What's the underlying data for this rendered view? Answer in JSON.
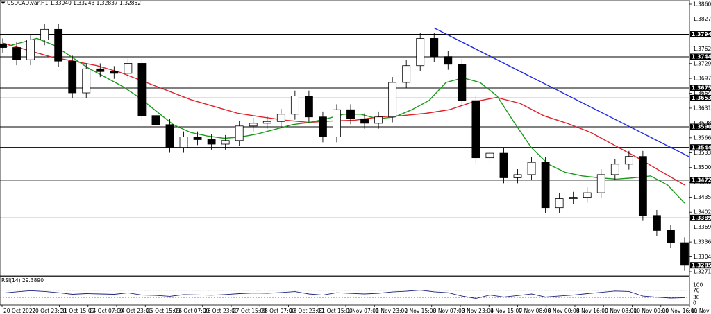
{
  "header": {
    "symbol_line": "USDCAD.var,H1  1.33040 1.33243 1.32837 1.32852",
    "dropdown_icon": "triangle-down-icon"
  },
  "colors": {
    "candle": "#000000",
    "sma_fast": "#1a9a1a",
    "sma_slow": "#e0202a",
    "trendline": "#1d2ae0",
    "hline": "#000000",
    "rsi": "#1a237e",
    "price_label_bg": "#000000",
    "price_label_text": "#ffffff"
  },
  "chart_data": [
    {
      "type": "candlestick",
      "title": "USDCAD.var,H1",
      "ohlc_header": {
        "open": 1.3304,
        "high": 1.33243,
        "low": 1.32837,
        "close": 1.32852
      },
      "ylim": [
        1.3271,
        1.38605
      ],
      "y_ticks": [
        "1.38605",
        "1.38275",
        "1.37620",
        "1.37295",
        "1.36970",
        "1.36640",
        "1.36315",
        "1.35985",
        "1.35660",
        "1.35330",
        "1.35005",
        "1.34675",
        "1.34350",
        "1.34020",
        "1.33695",
        "1.33365",
        "1.33040",
        "1.32710"
      ],
      "x_ticks": [
        "20 Oct 2022",
        "20 Oct 23:00",
        "21 Oct 15:00",
        "24 Oct 07:00",
        "24 Oct 23:00",
        "25 Oct 15:00",
        "26 Oct 07:00",
        "26 Oct 23:00",
        "27 Oct 15:00",
        "28 Oct 07:00",
        "28 Oct 23:00",
        "31 Oct 15:00",
        "1 Nov 07:00",
        "1 Nov 23:00",
        "2 Nov 15:00",
        "3 Nov 07:00",
        "3 Nov 23:00",
        "4 Nov 15:00",
        "7 Nov 08:00",
        "8 Nov 00:00",
        "8 Nov 16:00",
        "9 Nov 08:00",
        "10 Nov 00:00",
        "10 Nov 16:00",
        "11 Nov 08:00"
      ],
      "horizontal_levels": [
        1.3794,
        1.37445,
        1.36758,
        1.36537,
        1.35902,
        1.35449,
        1.34727,
        1.33896
      ],
      "level_labels": [
        "1.37940",
        "1.37445",
        "1.36758",
        "1.36537",
        "1.35902",
        "1.35449",
        "1.34727",
        "1.33896"
      ],
      "current_price_label": "1.32852",
      "current_price": 1.32852,
      "trendline": {
        "from": {
          "x": "3 Nov 07:00",
          "y": 1.3808
        },
        "to": {
          "x": "11 Nov 08:00",
          "y": 1.3524
        }
      },
      "series": [
        {
          "name": "Close",
          "x": [
            "20 Oct 2022",
            "20 Oct 09:00",
            "20 Oct 16:00",
            "20 Oct 23:00",
            "21 Oct 06:00",
            "21 Oct 15:00",
            "21 Oct 22:00",
            "24 Oct 07:00",
            "24 Oct 14:00",
            "24 Oct 23:00",
            "25 Oct 06:00",
            "25 Oct 15:00",
            "25 Oct 22:00",
            "26 Oct 07:00",
            "26 Oct 14:00",
            "26 Oct 23:00",
            "27 Oct 06:00",
            "27 Oct 15:00",
            "27 Oct 22:00",
            "28 Oct 07:00",
            "28 Oct 14:00",
            "28 Oct 23:00",
            "31 Oct 06:00",
            "31 Oct 15:00",
            "31 Oct 22:00",
            "1 Nov 07:00",
            "1 Nov 14:00",
            "1 Nov 23:00",
            "2 Nov 06:00",
            "2 Nov 15:00",
            "2 Nov 22:00",
            "3 Nov 07:00",
            "3 Nov 14:00",
            "3 Nov 23:00",
            "4 Nov 06:00",
            "4 Nov 15:00",
            "4 Nov 22:00",
            "7 Nov 08:00",
            "7 Nov 16:00",
            "8 Nov 00:00",
            "8 Nov 08:00",
            "8 Nov 16:00",
            "9 Nov 00:00",
            "9 Nov 08:00",
            "9 Nov 16:00",
            "10 Nov 00:00",
            "10 Nov 08:00",
            "10 Nov 16:00",
            "11 Nov 00:00",
            "11 Nov 08:00"
          ],
          "values": [
            1.3765,
            1.3738,
            1.3782,
            1.3805,
            1.3735,
            1.3665,
            1.3718,
            1.3712,
            1.3708,
            1.373,
            1.3615,
            1.3595,
            1.3545,
            1.3568,
            1.3562,
            1.3552,
            1.356,
            1.3592,
            1.3598,
            1.3602,
            1.3618,
            1.3658,
            1.3612,
            1.3568,
            1.3628,
            1.3608,
            1.3598,
            1.3612,
            1.3688,
            1.3725,
            1.3785,
            1.3745,
            1.3728,
            1.3648,
            1.3522,
            1.3532,
            1.3478,
            1.3485,
            1.3512,
            1.3412,
            1.3432,
            1.3435,
            1.3445,
            1.3485,
            1.3508,
            1.3525,
            1.3395,
            1.3362,
            1.3335,
            1.3285
          ]
        },
        {
          "name": "SMA fast",
          "values": [
            1.3765,
            1.3775,
            1.3785,
            1.377,
            1.3745,
            1.372,
            1.37,
            1.368,
            1.3655,
            1.3625,
            1.3595,
            1.3578,
            1.357,
            1.3565,
            1.3568,
            1.3575,
            1.3585,
            1.3595,
            1.36,
            1.3608,
            1.3618,
            1.3618,
            1.3608,
            1.3612,
            1.3628,
            1.3648,
            1.3688,
            1.3698,
            1.3688,
            1.3658,
            1.36,
            1.3545,
            1.3508,
            1.349,
            1.3482,
            1.3478,
            1.3475,
            1.3478,
            1.3482,
            1.3462,
            1.3422
          ]
        },
        {
          "name": "SMA slow",
          "values": [
            1.3775,
            1.376,
            1.3745,
            1.3735,
            1.3725,
            1.371,
            1.369,
            1.367,
            1.365,
            1.3635,
            1.362,
            1.3612,
            1.3605,
            1.36,
            1.3603,
            1.3605,
            1.3612,
            1.3615,
            1.362,
            1.3628,
            1.3645,
            1.3655,
            1.3642,
            1.3615,
            1.3598,
            1.3578,
            1.355,
            1.3522,
            1.3492,
            1.3462
          ]
        }
      ]
    },
    {
      "type": "line",
      "title": "RSI(14) 29.3890",
      "ylim": [
        0,
        100
      ],
      "y_ticks": [
        "100",
        "70",
        "30",
        "0"
      ],
      "levels": [
        70,
        30
      ],
      "series": [
        {
          "name": "RSI(14)",
          "values": [
            55,
            62,
            68,
            64,
            57,
            48,
            52,
            50,
            48,
            56,
            44,
            42,
            37,
            46,
            45,
            43,
            47,
            52,
            55,
            54,
            58,
            63,
            50,
            44,
            57,
            53,
            50,
            54,
            61,
            65,
            71,
            62,
            57,
            38,
            25,
            44,
            33,
            41,
            50,
            33,
            39,
            44,
            52,
            59,
            66,
            64,
            38,
            32,
            27,
            29.389
          ]
        }
      ]
    }
  ]
}
